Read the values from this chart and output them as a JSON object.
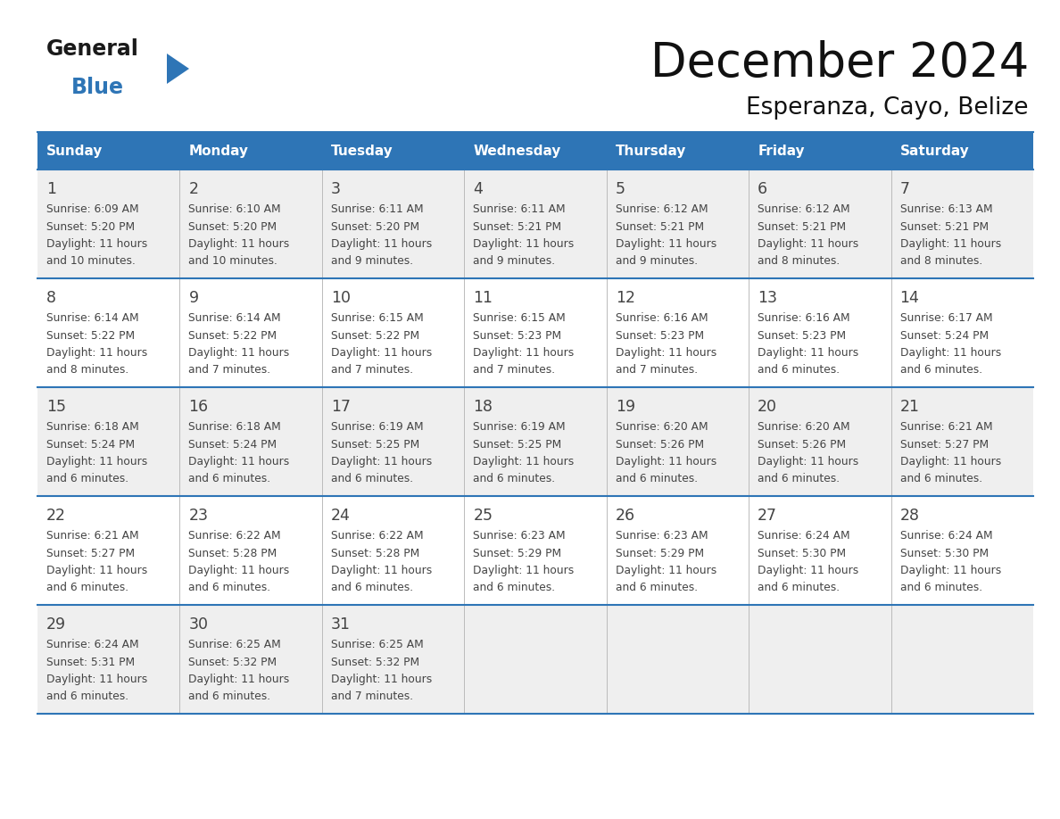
{
  "title": "December 2024",
  "subtitle": "Esperanza, Cayo, Belize",
  "header_bg_color": "#2E75B6",
  "header_text_color": "#FFFFFF",
  "day_names": [
    "Sunday",
    "Monday",
    "Tuesday",
    "Wednesday",
    "Thursday",
    "Friday",
    "Saturday"
  ],
  "row_bg_even": "#EFEFEF",
  "row_bg_odd": "#FFFFFF",
  "cell_text_color": "#444444",
  "border_color": "#2E75B6",
  "logo_general_color": "#1a1a1a",
  "logo_blue_color": "#2E75B6",
  "weeks": [
    [
      {
        "day": 1,
        "sunrise": "6:09 AM",
        "sunset": "5:20 PM",
        "daylight": "11 hours and 10 minutes."
      },
      {
        "day": 2,
        "sunrise": "6:10 AM",
        "sunset": "5:20 PM",
        "daylight": "11 hours and 10 minutes."
      },
      {
        "day": 3,
        "sunrise": "6:11 AM",
        "sunset": "5:20 PM",
        "daylight": "11 hours and 9 minutes."
      },
      {
        "day": 4,
        "sunrise": "6:11 AM",
        "sunset": "5:21 PM",
        "daylight": "11 hours and 9 minutes."
      },
      {
        "day": 5,
        "sunrise": "6:12 AM",
        "sunset": "5:21 PM",
        "daylight": "11 hours and 9 minutes."
      },
      {
        "day": 6,
        "sunrise": "6:12 AM",
        "sunset": "5:21 PM",
        "daylight": "11 hours and 8 minutes."
      },
      {
        "day": 7,
        "sunrise": "6:13 AM",
        "sunset": "5:21 PM",
        "daylight": "11 hours and 8 minutes."
      }
    ],
    [
      {
        "day": 8,
        "sunrise": "6:14 AM",
        "sunset": "5:22 PM",
        "daylight": "11 hours and 8 minutes."
      },
      {
        "day": 9,
        "sunrise": "6:14 AM",
        "sunset": "5:22 PM",
        "daylight": "11 hours and 7 minutes."
      },
      {
        "day": 10,
        "sunrise": "6:15 AM",
        "sunset": "5:22 PM",
        "daylight": "11 hours and 7 minutes."
      },
      {
        "day": 11,
        "sunrise": "6:15 AM",
        "sunset": "5:23 PM",
        "daylight": "11 hours and 7 minutes."
      },
      {
        "day": 12,
        "sunrise": "6:16 AM",
        "sunset": "5:23 PM",
        "daylight": "11 hours and 7 minutes."
      },
      {
        "day": 13,
        "sunrise": "6:16 AM",
        "sunset": "5:23 PM",
        "daylight": "11 hours and 6 minutes."
      },
      {
        "day": 14,
        "sunrise": "6:17 AM",
        "sunset": "5:24 PM",
        "daylight": "11 hours and 6 minutes."
      }
    ],
    [
      {
        "day": 15,
        "sunrise": "6:18 AM",
        "sunset": "5:24 PM",
        "daylight": "11 hours and 6 minutes."
      },
      {
        "day": 16,
        "sunrise": "6:18 AM",
        "sunset": "5:24 PM",
        "daylight": "11 hours and 6 minutes."
      },
      {
        "day": 17,
        "sunrise": "6:19 AM",
        "sunset": "5:25 PM",
        "daylight": "11 hours and 6 minutes."
      },
      {
        "day": 18,
        "sunrise": "6:19 AM",
        "sunset": "5:25 PM",
        "daylight": "11 hours and 6 minutes."
      },
      {
        "day": 19,
        "sunrise": "6:20 AM",
        "sunset": "5:26 PM",
        "daylight": "11 hours and 6 minutes."
      },
      {
        "day": 20,
        "sunrise": "6:20 AM",
        "sunset": "5:26 PM",
        "daylight": "11 hours and 6 minutes."
      },
      {
        "day": 21,
        "sunrise": "6:21 AM",
        "sunset": "5:27 PM",
        "daylight": "11 hours and 6 minutes."
      }
    ],
    [
      {
        "day": 22,
        "sunrise": "6:21 AM",
        "sunset": "5:27 PM",
        "daylight": "11 hours and 6 minutes."
      },
      {
        "day": 23,
        "sunrise": "6:22 AM",
        "sunset": "5:28 PM",
        "daylight": "11 hours and 6 minutes."
      },
      {
        "day": 24,
        "sunrise": "6:22 AM",
        "sunset": "5:28 PM",
        "daylight": "11 hours and 6 minutes."
      },
      {
        "day": 25,
        "sunrise": "6:23 AM",
        "sunset": "5:29 PM",
        "daylight": "11 hours and 6 minutes."
      },
      {
        "day": 26,
        "sunrise": "6:23 AM",
        "sunset": "5:29 PM",
        "daylight": "11 hours and 6 minutes."
      },
      {
        "day": 27,
        "sunrise": "6:24 AM",
        "sunset": "5:30 PM",
        "daylight": "11 hours and 6 minutes."
      },
      {
        "day": 28,
        "sunrise": "6:24 AM",
        "sunset": "5:30 PM",
        "daylight": "11 hours and 6 minutes."
      }
    ],
    [
      {
        "day": 29,
        "sunrise": "6:24 AM",
        "sunset": "5:31 PM",
        "daylight": "11 hours and 6 minutes."
      },
      {
        "day": 30,
        "sunrise": "6:25 AM",
        "sunset": "5:32 PM",
        "daylight": "11 hours and 6 minutes."
      },
      {
        "day": 31,
        "sunrise": "6:25 AM",
        "sunset": "5:32 PM",
        "daylight": "11 hours and 7 minutes."
      },
      null,
      null,
      null,
      null
    ]
  ]
}
